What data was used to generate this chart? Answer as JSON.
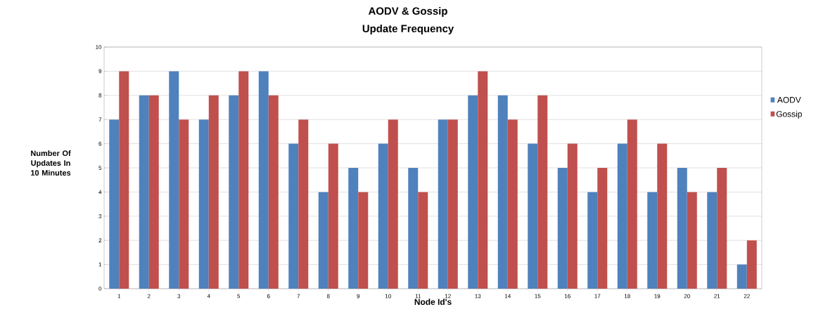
{
  "chart_data": {
    "type": "bar",
    "title": "AODV & Gossip",
    "subtitle": "Update Frequency",
    "xlabel": "Node Id's",
    "ylabel": "Number Of Updates In 10 Minutes",
    "categories": [
      "1",
      "2",
      "3",
      "4",
      "5",
      "6",
      "7",
      "8",
      "9",
      "10",
      "11",
      "12",
      "13",
      "14",
      "15",
      "16",
      "17",
      "18",
      "19",
      "20",
      "21",
      "22"
    ],
    "series": [
      {
        "name": "AODV",
        "color": "#4f81bd",
        "values": [
          7,
          8,
          9,
          7,
          8,
          9,
          6,
          4,
          5,
          6,
          5,
          7,
          8,
          8,
          6,
          5,
          4,
          6,
          4,
          5,
          4,
          1
        ]
      },
      {
        "name": "Gossip",
        "color": "#c0504d",
        "values": [
          9,
          8,
          7,
          8,
          9,
          8,
          7,
          6,
          4,
          7,
          4,
          7,
          9,
          7,
          8,
          6,
          5,
          7,
          6,
          4,
          5,
          2
        ]
      }
    ],
    "ylim": [
      0,
      10
    ],
    "yticks": [
      0,
      1,
      2,
      3,
      4,
      5,
      6,
      7,
      8,
      9,
      10
    ],
    "grid": "y",
    "legend": "right"
  }
}
